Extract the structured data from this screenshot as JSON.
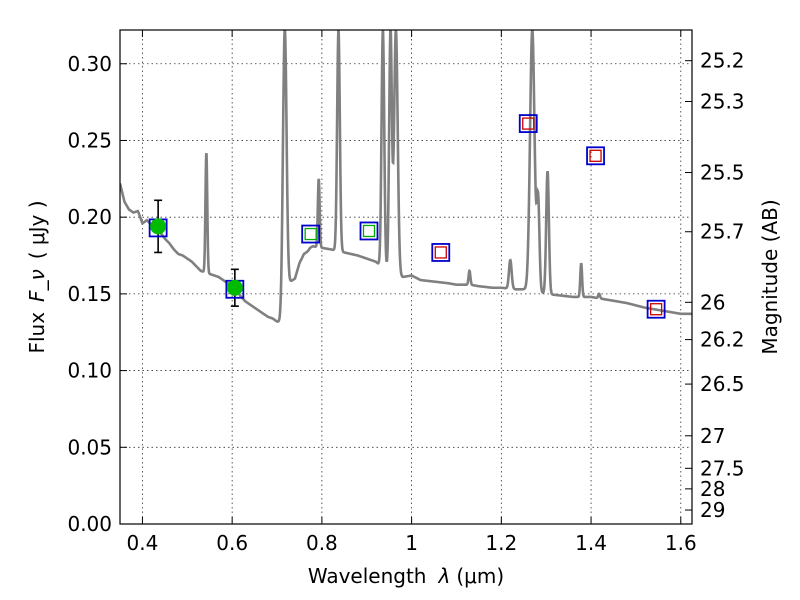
{
  "chart_data": {
    "type": "scatter",
    "xlabel": "Wavelength",
    "xlabel_symbol": "λ",
    "xlabel_unit": "(μm)",
    "ylabel": "Flux",
    "ylabel_symbol": "F_ν",
    "ylabel_unit": "( μJy )",
    "y2label": "Magnitude (AB)",
    "xlim": [
      0.35,
      1.625
    ],
    "ylim": [
      0.0,
      0.322
    ],
    "grid": true,
    "x_ticks": [
      0.4,
      0.6,
      0.8,
      1.0,
      1.2,
      1.4,
      1.6
    ],
    "x_tick_labels": [
      "0.4",
      "0.6",
      "0.8",
      "1",
      "1.2",
      "1.4",
      "1.6"
    ],
    "y_ticks": [
      0.0,
      0.05,
      0.1,
      0.15,
      0.2,
      0.25,
      0.3
    ],
    "y_tick_labels": [
      "0.00",
      "0.05",
      "0.10",
      "0.15",
      "0.20",
      "0.25",
      "0.30"
    ],
    "y2_ticks": [
      {
        "label": "25.2",
        "flux": 0.302
      },
      {
        "label": "25.3",
        "flux": 0.2754
      },
      {
        "label": "25.5",
        "flux": 0.2291
      },
      {
        "label": "25.7",
        "flux": 0.1905
      },
      {
        "label": "26",
        "flux": 0.1445
      },
      {
        "label": "26.2",
        "flux": 0.1202
      },
      {
        "label": "26.5",
        "flux": 0.0912
      },
      {
        "label": "27",
        "flux": 0.0575
      },
      {
        "label": "27.5",
        "flux": 0.0363
      },
      {
        "label": "28",
        "flux": 0.0229
      },
      {
        "label": "29",
        "flux": 0.0091
      }
    ],
    "colors": {
      "model": "#808080",
      "observed": "#00bb00",
      "model_box": "#0000cc",
      "synthetic_optical": "#00aa00",
      "synthetic_ir": "#cc0000",
      "errorbar": "#000000"
    },
    "observed_points": [
      {
        "x": 0.435,
        "y": 0.194,
        "yerr": 0.017
      },
      {
        "x": 0.606,
        "y": 0.154,
        "yerr": 0.012
      }
    ],
    "model_boxes": [
      {
        "x": 0.435,
        "y": 0.193
      },
      {
        "x": 0.606,
        "y": 0.153
      },
      {
        "x": 0.775,
        "y": 0.189
      },
      {
        "x": 0.905,
        "y": 0.191
      },
      {
        "x": 1.065,
        "y": 0.177
      },
      {
        "x": 1.26,
        "y": 0.261
      },
      {
        "x": 1.41,
        "y": 0.24
      },
      {
        "x": 1.545,
        "y": 0.14
      }
    ],
    "synthetic_points": [
      {
        "x": 0.775,
        "y": 0.189,
        "band": "optical"
      },
      {
        "x": 0.905,
        "y": 0.191,
        "band": "optical"
      },
      {
        "x": 1.065,
        "y": 0.177,
        "band": "ir"
      },
      {
        "x": 1.26,
        "y": 0.261,
        "band": "ir"
      },
      {
        "x": 1.41,
        "y": 0.24,
        "band": "ir"
      },
      {
        "x": 1.545,
        "y": 0.14,
        "band": "ir"
      }
    ],
    "model_continuum": [
      [
        0.35,
        0.222
      ],
      [
        0.36,
        0.21
      ],
      [
        0.37,
        0.205
      ],
      [
        0.38,
        0.203
      ],
      [
        0.39,
        0.204
      ],
      [
        0.4,
        0.196
      ],
      [
        0.41,
        0.198
      ],
      [
        0.42,
        0.195
      ],
      [
        0.43,
        0.193
      ],
      [
        0.44,
        0.19
      ],
      [
        0.45,
        0.186
      ],
      [
        0.46,
        0.183
      ],
      [
        0.47,
        0.179
      ],
      [
        0.48,
        0.176
      ],
      [
        0.49,
        0.175
      ],
      [
        0.5,
        0.173
      ],
      [
        0.51,
        0.171
      ],
      [
        0.52,
        0.168
      ],
      [
        0.53,
        0.165
      ],
      [
        0.54,
        0.164
      ],
      [
        0.55,
        0.163
      ],
      [
        0.56,
        0.162
      ],
      [
        0.57,
        0.161
      ],
      [
        0.58,
        0.159
      ],
      [
        0.59,
        0.157
      ],
      [
        0.6,
        0.155
      ],
      [
        0.61,
        0.152
      ],
      [
        0.62,
        0.148
      ],
      [
        0.63,
        0.145
      ],
      [
        0.64,
        0.143
      ],
      [
        0.65,
        0.141
      ],
      [
        0.66,
        0.139
      ],
      [
        0.67,
        0.137
      ],
      [
        0.68,
        0.135
      ],
      [
        0.69,
        0.134
      ],
      [
        0.7,
        0.132
      ],
      [
        0.71,
        0.131
      ],
      [
        0.715,
        0.135
      ],
      [
        0.72,
        0.155
      ],
      [
        0.73,
        0.158
      ],
      [
        0.74,
        0.16
      ],
      [
        0.75,
        0.17
      ],
      [
        0.76,
        0.176
      ],
      [
        0.77,
        0.178
      ],
      [
        0.78,
        0.181
      ],
      [
        0.8,
        0.18
      ],
      [
        0.82,
        0.179
      ],
      [
        0.85,
        0.177
      ],
      [
        0.88,
        0.175
      ],
      [
        0.9,
        0.173
      ],
      [
        0.92,
        0.171
      ],
      [
        0.94,
        0.166
      ],
      [
        0.96,
        0.163
      ],
      [
        0.98,
        0.161
      ],
      [
        1.0,
        0.162
      ],
      [
        1.02,
        0.159
      ],
      [
        1.05,
        0.158
      ],
      [
        1.08,
        0.157
      ],
      [
        1.1,
        0.156
      ],
      [
        1.13,
        0.156
      ],
      [
        1.15,
        0.155
      ],
      [
        1.18,
        0.154
      ],
      [
        1.2,
        0.154
      ],
      [
        1.23,
        0.153
      ],
      [
        1.26,
        0.153
      ],
      [
        1.3,
        0.15
      ],
      [
        1.33,
        0.149
      ],
      [
        1.36,
        0.148
      ],
      [
        1.4,
        0.148
      ],
      [
        1.44,
        0.146
      ],
      [
        1.48,
        0.144
      ],
      [
        1.52,
        0.141
      ],
      [
        1.56,
        0.139
      ],
      [
        1.6,
        0.137
      ],
      [
        1.625,
        0.137
      ]
    ],
    "emission_lines": [
      {
        "x": 0.5425,
        "peak": 0.242,
        "w": 0.002
      },
      {
        "x": 0.717,
        "peak": 0.322,
        "w": 0.004
      },
      {
        "x": 0.774,
        "peak": 0.18,
        "w": 0.003
      },
      {
        "x": 0.793,
        "peak": 0.225,
        "w": 0.002
      },
      {
        "x": 0.837,
        "peak": 0.322,
        "w": 0.003
      },
      {
        "x": 0.936,
        "peak": 0.322,
        "w": 0.003
      },
      {
        "x": 0.953,
        "peak": 0.322,
        "w": 0.003
      },
      {
        "x": 0.965,
        "peak": 0.322,
        "w": 0.004
      },
      {
        "x": 1.129,
        "peak": 0.165,
        "w": 0.002
      },
      {
        "x": 1.22,
        "peak": 0.172,
        "w": 0.003
      },
      {
        "x": 1.269,
        "peak": 0.322,
        "w": 0.005
      },
      {
        "x": 1.282,
        "peak": 0.21,
        "w": 0.003
      },
      {
        "x": 1.303,
        "peak": 0.23,
        "w": 0.003
      },
      {
        "x": 1.378,
        "peak": 0.17,
        "w": 0.002
      },
      {
        "x": 1.418,
        "peak": 0.15,
        "w": 0.002
      }
    ]
  }
}
